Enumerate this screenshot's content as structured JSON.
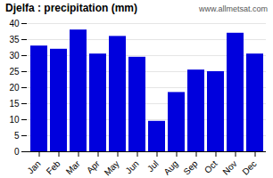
{
  "chart_data": {
    "type": "bar",
    "title": "Djelfa : precipitation (mm)",
    "categories": [
      "Jan",
      "Feb",
      "Mar",
      "Apr",
      "May",
      "Jun",
      "Jul",
      "Aug",
      "Sep",
      "Oct",
      "Nov",
      "Dec"
    ],
    "values": [
      33,
      32,
      38,
      30.5,
      36,
      29.5,
      9.5,
      18.5,
      25.5,
      25,
      37,
      30.5
    ],
    "color": "#0000dd",
    "ylim": [
      0,
      40
    ],
    "yticks": [
      0,
      5,
      10,
      15,
      20,
      25,
      30,
      35,
      40
    ],
    "grid": true,
    "annotation": "www.allmetsat.com"
  }
}
